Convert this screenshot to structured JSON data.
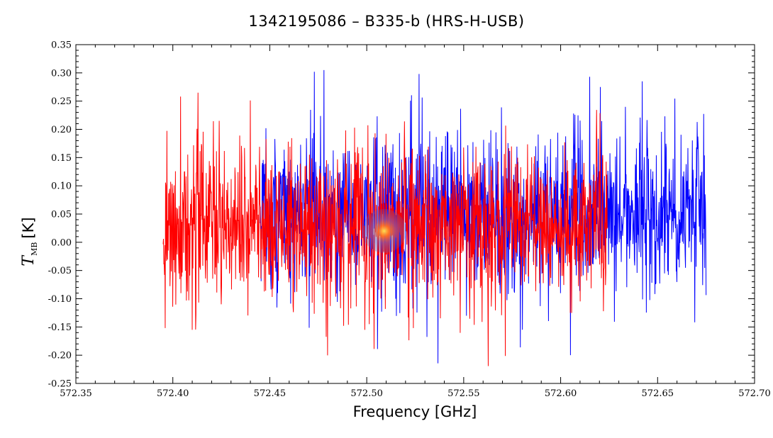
{
  "chart_data": {
    "type": "line",
    "title": "1342195086 – B335-b (HRS-H-USB)",
    "xlabel": "Frequency [GHz]",
    "ylabel": "T",
    "ylabel_subscript": "MB",
    "ylabel_unit": "[K]",
    "xlim": [
      572.35,
      572.7
    ],
    "ylim": [
      -0.25,
      0.35
    ],
    "xticks": [
      "572.35",
      "572.40",
      "572.45",
      "572.50",
      "572.55",
      "572.60",
      "572.65",
      "572.70"
    ],
    "yticks": [
      "0.35",
      "0.30",
      "0.25",
      "0.20",
      "0.15",
      "0.10",
      "0.05",
      "0.00",
      "-0.05",
      "-0.10",
      "-0.15",
      "-0.20",
      "-0.25"
    ],
    "grid": false,
    "series": [
      {
        "color": "#0000ff",
        "x_range": [
          572.445,
          572.675
        ],
        "points": 1300,
        "mean": 0.05,
        "sigma": 0.075,
        "y_extremes": [
          [
            572.478,
            0.305
          ],
          [
            572.473,
            0.302
          ],
          [
            572.527,
            0.298
          ],
          [
            572.605,
            -0.2
          ],
          [
            572.615,
            0.293
          ],
          [
            572.642,
            0.285
          ]
        ]
      },
      {
        "color": "#ff0000",
        "x_range": [
          572.395,
          572.624
        ],
        "points": 1300,
        "mean": 0.03,
        "sigma": 0.075,
        "y_extremes": [
          [
            572.413,
            0.265
          ],
          [
            572.404,
            0.258
          ],
          [
            572.396,
            -0.152
          ],
          [
            572.41,
            -0.155
          ],
          [
            572.488,
            -0.148
          ],
          [
            572.499,
            -0.155
          ],
          [
            572.524,
            -0.152
          ],
          [
            572.605,
            -0.125
          ]
        ]
      }
    ],
    "annotations": [
      {
        "type": "marker",
        "x": 572.509,
        "y": 0.02,
        "color": "#4466cc"
      }
    ]
  }
}
